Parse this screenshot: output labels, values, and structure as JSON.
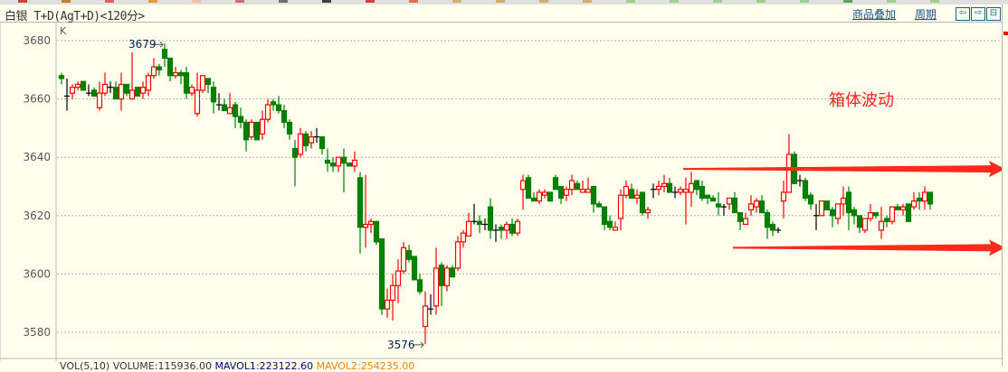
{
  "header": {
    "title": "白银 T+D(AgT+D)<120分>",
    "overlay_link": "商品叠加",
    "period_link": "周期",
    "buttons": [
      {
        "icon": "arrow-left-icon",
        "glyph": "⇦"
      },
      {
        "icon": "arrow-right-icon",
        "glyph": "⇨"
      },
      {
        "icon": "layout-icon",
        "glyph": "⊟"
      }
    ]
  },
  "colors": {
    "up": "#ff0000",
    "down": "#008000",
    "flat": "#000000",
    "background": "#ffffee",
    "annotation": "#ff2020",
    "link": "#1a4f8a"
  },
  "bottom_indicator": {
    "vol": "VOL(5,10) VOLUME:115936.00",
    "mavol1": "MAVOL1:223122.60",
    "mavol2": "MAVOL2:254235.00"
  },
  "chart_data": {
    "type": "candlestick",
    "indicator_label": "K",
    "ylim": [
      3573,
      3684
    ],
    "yticks": [
      3580,
      3600,
      3620,
      3640,
      3660,
      3680
    ],
    "grid": true,
    "high_label": "3679",
    "low_label": "3576",
    "annotation": "箱体波动",
    "box_range_arrows": [
      3636,
      3609
    ],
    "ohlc": [
      [
        3668,
        3669,
        3665,
        3667
      ],
      [
        3661,
        3667,
        3656,
        3661
      ],
      [
        3662,
        3665,
        3660,
        3664
      ],
      [
        3664,
        3666,
        3663,
        3665
      ],
      [
        3666,
        3666,
        3663,
        3663
      ],
      [
        3662,
        3665,
        3661,
        3662
      ],
      [
        3663,
        3664,
        3661,
        3661
      ],
      [
        3657,
        3666,
        3656,
        3662
      ],
      [
        3662,
        3669,
        3661,
        3665
      ],
      [
        3664,
        3666,
        3662,
        3664
      ],
      [
        3664,
        3666,
        3660,
        3660
      ],
      [
        3660,
        3669,
        3656,
        3665
      ],
      [
        3665,
        3665,
        3661,
        3662
      ],
      [
        3660,
        3676,
        3660,
        3663
      ],
      [
        3664,
        3664,
        3661,
        3661
      ],
      [
        3662,
        3666,
        3660,
        3664
      ],
      [
        3663,
        3669,
        3661,
        3668
      ],
      [
        3668,
        3674,
        3667,
        3671
      ],
      [
        3671,
        3672,
        3668,
        3670
      ],
      [
        3677,
        3679,
        3671,
        3674
      ],
      [
        3674,
        3674,
        3666,
        3668
      ],
      [
        3668,
        3671,
        3667,
        3669
      ],
      [
        3669,
        3670,
        3665,
        3668
      ],
      [
        3669,
        3671,
        3660,
        3662
      ],
      [
        3662,
        3665,
        3661,
        3664
      ],
      [
        3655,
        3669,
        3654,
        3663
      ],
      [
        3663,
        3668,
        3662,
        3668
      ],
      [
        3667,
        3667,
        3662,
        3665
      ],
      [
        3664,
        3666,
        3655,
        3659
      ],
      [
        3658,
        3662,
        3656,
        3658
      ],
      [
        3658,
        3660,
        3656,
        3656
      ],
      [
        3655,
        3662,
        3655,
        3657
      ],
      [
        3658,
        3659,
        3650,
        3654
      ],
      [
        3654,
        3657,
        3650,
        3652
      ],
      [
        3652,
        3653,
        3642,
        3646
      ],
      [
        3647,
        3653,
        3646,
        3652
      ],
      [
        3652,
        3652,
        3646,
        3646
      ],
      [
        3648,
        3656,
        3646,
        3653
      ],
      [
        3653,
        3660,
        3652,
        3658
      ],
      [
        3659,
        3660,
        3656,
        3658
      ],
      [
        3658,
        3661,
        3655,
        3656
      ],
      [
        3656,
        3658,
        3650,
        3652
      ],
      [
        3652,
        3653,
        3646,
        3648
      ],
      [
        3643,
        3646,
        3630,
        3640
      ],
      [
        3641,
        3650,
        3640,
        3648
      ],
      [
        3648,
        3649,
        3642,
        3644
      ],
      [
        3645,
        3649,
        3643,
        3647
      ],
      [
        3647,
        3650,
        3645,
        3647
      ],
      [
        3647,
        3647,
        3641,
        3643
      ],
      [
        3639,
        3643,
        3635,
        3638
      ],
      [
        3638,
        3640,
        3635,
        3637
      ],
      [
        3637,
        3640,
        3635,
        3640
      ],
      [
        3640,
        3643,
        3628,
        3638
      ],
      [
        3638,
        3638,
        3637,
        3637
      ],
      [
        3637,
        3642,
        3635,
        3639
      ],
      [
        3633,
        3635,
        3607,
        3616
      ],
      [
        3616,
        3634,
        3609,
        3617
      ],
      [
        3617,
        3619,
        3614,
        3618
      ],
      [
        3618,
        3618,
        3610,
        3611
      ],
      [
        3612,
        3612,
        3586,
        3588
      ],
      [
        3588,
        3595,
        3585,
        3591
      ],
      [
        3591,
        3600,
        3584,
        3596
      ],
      [
        3596,
        3605,
        3590,
        3601
      ],
      [
        3601,
        3611,
        3600,
        3609
      ],
      [
        3608,
        3610,
        3604,
        3605
      ],
      [
        3606,
        3606,
        3598,
        3598
      ],
      [
        3598,
        3600,
        3593,
        3594
      ],
      [
        3582,
        3594,
        3576,
        3589
      ],
      [
        3588,
        3593,
        3586,
        3588
      ],
      [
        3589,
        3609,
        3586,
        3602
      ],
      [
        3603,
        3604,
        3589,
        3596
      ],
      [
        3596,
        3603,
        3594,
        3602
      ],
      [
        3602,
        3603,
        3599,
        3599
      ],
      [
        3602,
        3613,
        3601,
        3611
      ],
      [
        3611,
        3615,
        3609,
        3614
      ],
      [
        3613,
        3621,
        3613,
        3618
      ],
      [
        3618,
        3624,
        3617,
        3618
      ],
      [
        3618,
        3620,
        3614,
        3617
      ],
      [
        3617,
        3619,
        3615,
        3617
      ],
      [
        3623,
        3626,
        3612,
        3615
      ],
      [
        3615,
        3617,
        3611,
        3615
      ],
      [
        3616,
        3617,
        3612,
        3615
      ],
      [
        3615,
        3618,
        3612,
        3617
      ],
      [
        3617,
        3619,
        3613,
        3614
      ],
      [
        3614,
        3619,
        3613,
        3618
      ],
      [
        3629,
        3634,
        3622,
        3632
      ],
      [
        3633,
        3634,
        3626,
        3626
      ],
      [
        3626,
        3628,
        3625,
        3625
      ],
      [
        3625,
        3629,
        3624,
        3628
      ],
      [
        3627,
        3629,
        3626,
        3628
      ],
      [
        3628,
        3628,
        3625,
        3625
      ],
      [
        3633,
        3634,
        3629,
        3629
      ],
      [
        3630,
        3630,
        3624,
        3626
      ],
      [
        3627,
        3630,
        3625,
        3629
      ],
      [
        3629,
        3634,
        3627,
        3632
      ],
      [
        3631,
        3632,
        3629,
        3629
      ],
      [
        3628,
        3632,
        3628,
        3629
      ],
      [
        3628,
        3633,
        3628,
        3629
      ],
      [
        3630,
        3630,
        3621,
        3624
      ],
      [
        3624,
        3625,
        3623,
        3623
      ],
      [
        3623,
        3623,
        3615,
        3617
      ],
      [
        3618,
        3620,
        3615,
        3616
      ],
      [
        3615,
        3618,
        3615,
        3616
      ],
      [
        3619,
        3629,
        3615,
        3627
      ],
      [
        3627,
        3632,
        3626,
        3630
      ],
      [
        3629,
        3631,
        3626,
        3626
      ],
      [
        3626,
        3629,
        3624,
        3627
      ],
      [
        3628,
        3628,
        3620,
        3621
      ],
      [
        3621,
        3623,
        3619,
        3622
      ],
      [
        3629,
        3631,
        3626,
        3629
      ],
      [
        3629,
        3632,
        3627,
        3630
      ],
      [
        3630,
        3634,
        3628,
        3631
      ],
      [
        3631,
        3633,
        3628,
        3628
      ],
      [
        3628,
        3630,
        3626,
        3628
      ],
      [
        3628,
        3630,
        3627,
        3629
      ],
      [
        3628,
        3633,
        3617,
        3629
      ],
      [
        3628,
        3635,
        3623,
        3631
      ],
      [
        3632,
        3632,
        3627,
        3629
      ],
      [
        3630,
        3632,
        3625,
        3626
      ],
      [
        3627,
        3627,
        3624,
        3626
      ],
      [
        3626,
        3627,
        3625,
        3625
      ],
      [
        3624,
        3628,
        3620,
        3623
      ],
      [
        3623,
        3624,
        3620,
        3623
      ],
      [
        3624,
        3626,
        3622,
        3626
      ],
      [
        3626,
        3628,
        3621,
        3621
      ],
      [
        3621,
        3621,
        3615,
        3618
      ],
      [
        3617,
        3621,
        3617,
        3619
      ],
      [
        3622,
        3627,
        3620,
        3624
      ],
      [
        3623,
        3626,
        3621,
        3625
      ],
      [
        3625,
        3627,
        3621,
        3621
      ],
      [
        3621,
        3622,
        3612,
        3616
      ],
      [
        3617,
        3618,
        3613,
        3615
      ],
      [
        3615,
        3616,
        3614,
        3615
      ],
      [
        3625,
        3632,
        3619,
        3628
      ],
      [
        3628,
        3648,
        3628,
        3641
      ],
      [
        3641,
        3642,
        3631,
        3631
      ],
      [
        3632,
        3634,
        3630,
        3632
      ],
      [
        3632,
        3633,
        3625,
        3626
      ],
      [
        3627,
        3628,
        3622,
        3624
      ],
      [
        3620,
        3624,
        3615,
        3620
      ],
      [
        3620,
        3625,
        3620,
        3625
      ],
      [
        3625,
        3625,
        3622,
        3622
      ],
      [
        3622,
        3623,
        3616,
        3620
      ],
      [
        3619,
        3624,
        3617,
        3624
      ],
      [
        3624,
        3630,
        3620,
        3626
      ],
      [
        3628,
        3630,
        3615,
        3621
      ],
      [
        3622,
        3623,
        3617,
        3620
      ],
      [
        3620,
        3620,
        3614,
        3616
      ],
      [
        3615,
        3619,
        3614,
        3619
      ],
      [
        3619,
        3624,
        3618,
        3621
      ],
      [
        3621,
        3621,
        3619,
        3620
      ],
      [
        3615,
        3623,
        3612,
        3618
      ],
      [
        3619,
        3620,
        3616,
        3618
      ],
      [
        3618,
        3623,
        3617,
        3623
      ],
      [
        3623,
        3624,
        3622,
        3622
      ],
      [
        3622,
        3624,
        3620,
        3623
      ],
      [
        3624,
        3624,
        3618,
        3618
      ],
      [
        3623,
        3628,
        3622,
        3625
      ],
      [
        3626,
        3628,
        3622,
        3625
      ],
      [
        3625,
        3630,
        3622,
        3628
      ],
      [
        3628,
        3628,
        3622,
        3624
      ]
    ]
  }
}
